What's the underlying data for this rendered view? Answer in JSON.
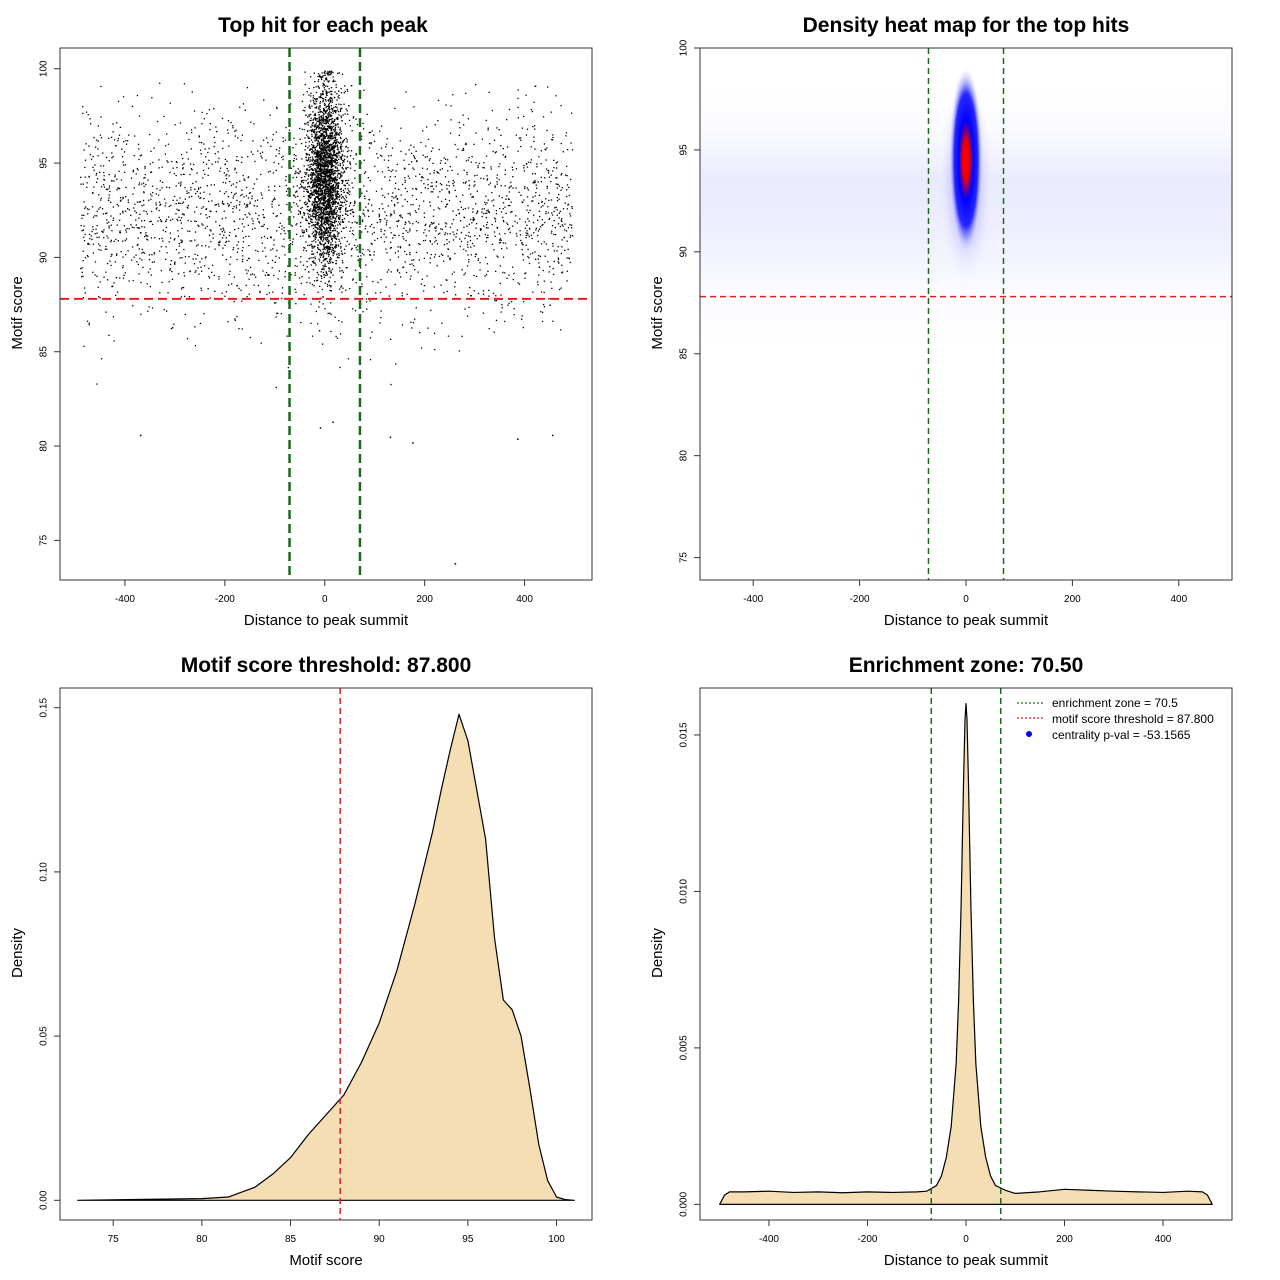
{
  "colors": {
    "zone_line": "#1a6b1a",
    "threshold_line": "#e02020",
    "density_fill": "#f5deb3",
    "density_stroke": "#000000",
    "points": "#000000",
    "heat_low": "#ffffff",
    "heat_mid": "#0000ff",
    "heat_high": "#ff0000",
    "legend_marker": "#0000ff"
  },
  "chart_data": [
    {
      "type": "scatter",
      "title": "Top hit for each peak",
      "xlabel": "Distance to peak summit",
      "ylabel": "Motif score",
      "xlim": [
        -530,
        535
      ],
      "ylim": [
        72.9,
        101.1
      ],
      "xticks": [
        -400,
        -200,
        0,
        200,
        400
      ],
      "yticks": [
        75,
        80,
        85,
        90,
        95,
        100
      ],
      "grid": false,
      "background_points": {
        "x_range": [
          -490,
          495
        ],
        "score_mean": 92.3,
        "score_sd": 2.7,
        "count_shown": 2600
      },
      "central_cluster": {
        "x_mean": 0,
        "x_sd": 18,
        "score_mean": 94.3,
        "score_sd": 2.4,
        "count_shown": 3000
      },
      "sample_points": [
        {
          "x": -370,
          "y": 80.6
        },
        {
          "x": -10,
          "y": 81.0
        },
        {
          "x": 15,
          "y": 81.3
        },
        {
          "x": 130,
          "y": 80.5
        },
        {
          "x": 175,
          "y": 80.2
        },
        {
          "x": 385,
          "y": 80.4
        },
        {
          "x": 455,
          "y": 80.6
        },
        {
          "x": 260,
          "y": 73.8
        }
      ],
      "vlines": [
        -70.5,
        70.5
      ],
      "hlines": [
        87.8
      ]
    },
    {
      "type": "heatmap",
      "title": "Density heat map for the top hits",
      "xlabel": "Distance to peak summit",
      "ylabel": "Motif score",
      "xlim": [
        -500,
        500
      ],
      "ylim": [
        73.9,
        100.0
      ],
      "xticks": [
        -400,
        -200,
        0,
        200,
        400
      ],
      "yticks": [
        75,
        80,
        85,
        90,
        95,
        100
      ],
      "colorscale": [
        "#ffffff",
        "#0000ff",
        "#ff0000"
      ],
      "hotspot": {
        "x": 0,
        "y": 94.5
      },
      "vlines": [
        -70.5,
        70.5
      ],
      "hlines": [
        87.8
      ]
    },
    {
      "type": "area",
      "title": "Motif score threshold: 87.800",
      "xlabel": "Motif score",
      "ylabel": "Density",
      "xlim": [
        72.0,
        102.0
      ],
      "ylim": [
        -0.006,
        0.156
      ],
      "xticks": [
        75,
        80,
        85,
        90,
        95,
        100
      ],
      "yticks": [
        0.0,
        0.05,
        0.1,
        0.15
      ],
      "ytick_labels": [
        "0.00",
        "0.05",
        "0.10",
        "0.15"
      ],
      "x": [
        73.0,
        80.0,
        81.5,
        82.0,
        83.0,
        84.0,
        85.0,
        86.0,
        87.0,
        88.0,
        89.0,
        90.0,
        91.0,
        92.0,
        93.0,
        93.5,
        94.0,
        94.5,
        95.0,
        96.0,
        96.5,
        97.0,
        97.5,
        98.0,
        98.5,
        99.0,
        99.5,
        100.0,
        100.5,
        101.0
      ],
      "y": [
        0.0,
        0.0005,
        0.001,
        0.002,
        0.004,
        0.008,
        0.013,
        0.02,
        0.026,
        0.032,
        0.042,
        0.054,
        0.07,
        0.09,
        0.112,
        0.125,
        0.137,
        0.148,
        0.14,
        0.11,
        0.08,
        0.061,
        0.058,
        0.05,
        0.034,
        0.017,
        0.006,
        0.001,
        0.0002,
        0.0
      ],
      "vlines": [
        87.8
      ]
    },
    {
      "type": "area",
      "title": "Enrichment zone: 70.50",
      "xlabel": "Distance to peak summit",
      "ylabel": "Density",
      "xlim": [
        -540,
        540
      ],
      "ylim": [
        -0.0005,
        0.0165
      ],
      "xticks": [
        -400,
        -200,
        0,
        200,
        400
      ],
      "yticks": [
        0.0,
        0.005,
        0.01,
        0.015
      ],
      "ytick_labels": [
        "0.000",
        "0.005",
        "0.010",
        "0.015"
      ],
      "x": [
        -500,
        -490,
        -480,
        -450,
        -400,
        -350,
        -300,
        -250,
        -200,
        -150,
        -100,
        -80,
        -60,
        -50,
        -40,
        -30,
        -20,
        -15,
        -10,
        -5,
        -2,
        0,
        2,
        5,
        10,
        15,
        20,
        30,
        40,
        50,
        60,
        80,
        100,
        150,
        200,
        250,
        300,
        350,
        400,
        450,
        480,
        490,
        500
      ],
      "y": [
        0.0,
        0.0003,
        0.0004,
        0.0004,
        0.00042,
        0.00038,
        0.0004,
        0.00037,
        0.0004,
        0.00038,
        0.0004,
        0.00042,
        0.0006,
        0.0009,
        0.0015,
        0.0025,
        0.0045,
        0.0065,
        0.0095,
        0.0135,
        0.0155,
        0.016,
        0.0155,
        0.0135,
        0.0095,
        0.0065,
        0.0045,
        0.0025,
        0.0015,
        0.0009,
        0.0006,
        0.00045,
        0.00035,
        0.0004,
        0.00048,
        0.00045,
        0.00042,
        0.0004,
        0.00038,
        0.00042,
        0.0004,
        0.0003,
        0.0
      ],
      "vlines": [
        -70.5,
        70.5
      ],
      "legend": {
        "position": "top-right",
        "entries": [
          {
            "label": "enrichment zone = 70.5",
            "style": "dotted",
            "color": "#1a6b1a"
          },
          {
            "label": "motif score threshold = 87.800",
            "style": "dotted",
            "color": "#e02020"
          },
          {
            "label": "centrality p-val = -53.1565",
            "style": "point",
            "color": "#0000ff"
          }
        ]
      }
    }
  ]
}
